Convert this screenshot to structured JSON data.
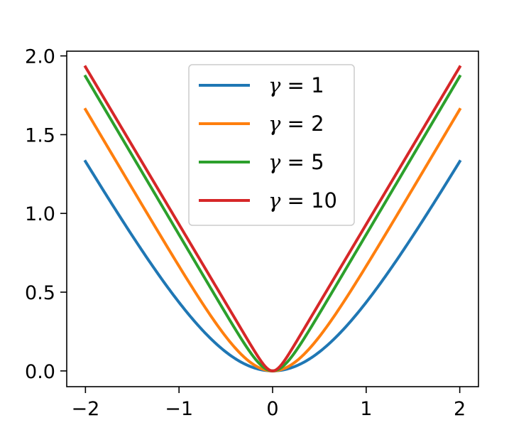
{
  "chart_data": {
    "type": "line",
    "title": "",
    "xlabel": "",
    "ylabel": "",
    "xlim": [
      -2.2,
      2.2
    ],
    "ylim": [
      -0.1,
      2.03
    ],
    "xticks": [
      -2,
      -1,
      0,
      1,
      2
    ],
    "xtick_labels": [
      "−2",
      "−1",
      "0",
      "1",
      "2"
    ],
    "yticks": [
      0.0,
      0.5,
      1.0,
      1.5,
      2.0
    ],
    "ytick_labels": [
      "0.0",
      "0.5",
      "1.0",
      "1.5",
      "2.0"
    ],
    "grid": false,
    "legend_placement": "upper center",
    "x": [
      -2.0,
      -1.5,
      -1.0,
      -0.5,
      -0.25,
      0.0,
      0.25,
      0.5,
      1.0,
      1.5,
      2.0
    ],
    "series": [
      {
        "name_symbol": "γ",
        "name_eq": " = 1",
        "name": "γ = 1",
        "color": "#1f77b4",
        "values": [
          1.33,
          0.9,
          0.51,
          0.18,
          0.06,
          0.0,
          0.06,
          0.18,
          0.51,
          0.9,
          1.33
        ]
      },
      {
        "name_symbol": "γ",
        "name_eq": " = 2",
        "name": "γ = 2",
        "color": "#ff7f0e",
        "values": [
          1.66,
          1.18,
          0.72,
          0.3,
          0.12,
          0.0,
          0.12,
          0.3,
          0.72,
          1.18,
          1.66
        ]
      },
      {
        "name_symbol": "γ",
        "name_eq": " = 5",
        "name": "γ = 5",
        "color": "#2ca02c",
        "values": [
          1.87,
          1.37,
          0.88,
          0.41,
          0.18,
          0.0,
          0.18,
          0.41,
          0.88,
          1.37,
          1.87
        ]
      },
      {
        "name_symbol": "γ",
        "name_eq": " = 10",
        "name": "γ = 10",
        "color": "#d62728",
        "values": [
          1.93,
          1.43,
          0.93,
          0.45,
          0.21,
          0.0,
          0.21,
          0.45,
          0.93,
          1.43,
          1.93
        ]
      }
    ]
  }
}
